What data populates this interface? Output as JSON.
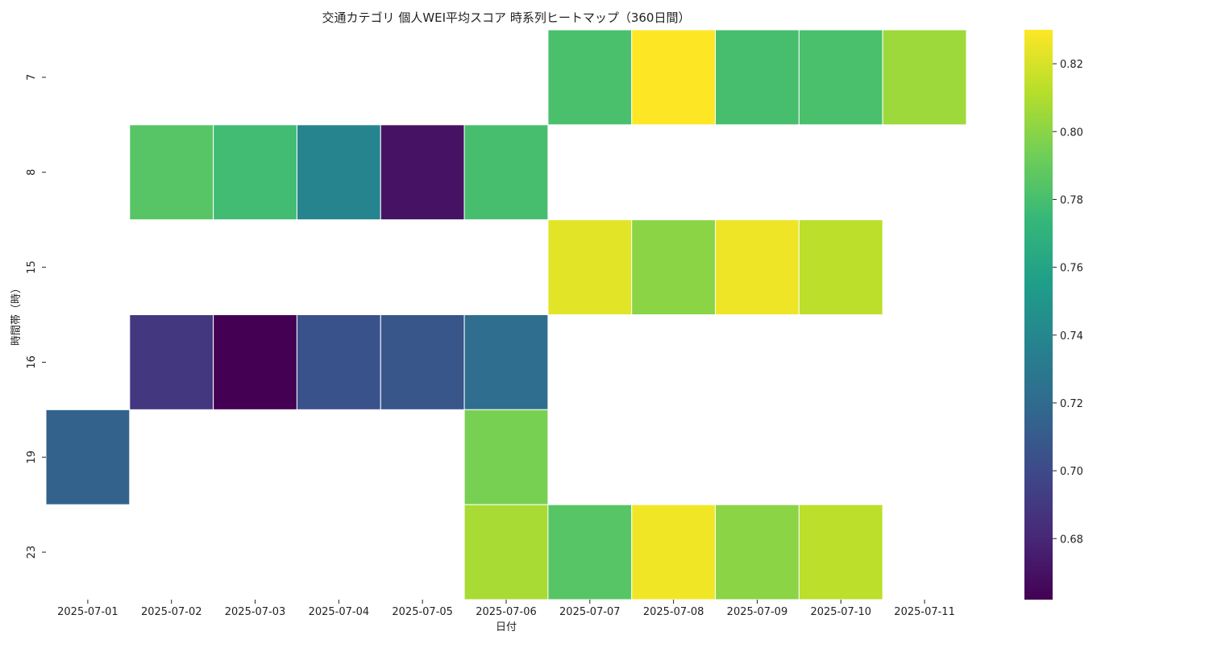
{
  "chart_data": {
    "type": "heatmap",
    "title": "交通カテゴリ 個人WEI平均スコア 時系列ヒートマップ（360日間）",
    "xlabel": "日付",
    "ylabel": "時間帯（時）",
    "x": [
      "2025-07-01",
      "2025-07-02",
      "2025-07-03",
      "2025-07-04",
      "2025-07-05",
      "2025-07-06",
      "2025-07-07",
      "2025-07-08",
      "2025-07-09",
      "2025-07-10",
      "2025-07-11"
    ],
    "y": [
      "7",
      "8",
      "15",
      "16",
      "19",
      "23"
    ],
    "values": [
      [
        null,
        null,
        null,
        null,
        null,
        null,
        0.781,
        0.83,
        0.78,
        0.781,
        0.805
      ],
      [
        null,
        0.785,
        0.778,
        0.738,
        0.67,
        0.78,
        null,
        null,
        null,
        null,
        null
      ],
      [
        null,
        null,
        null,
        null,
        null,
        null,
        0.823,
        0.8,
        0.826,
        0.813,
        null
      ],
      [
        null,
        0.69,
        0.662,
        0.705,
        0.707,
        0.722,
        null,
        null,
        null,
        null,
        null
      ],
      [
        0.715,
        null,
        null,
        null,
        null,
        0.795,
        null,
        null,
        null,
        null,
        null
      ],
      [
        null,
        null,
        null,
        null,
        null,
        0.808,
        0.785,
        0.827,
        0.8,
        0.813,
        null
      ]
    ],
    "colorbar": {
      "colormap": "viridis",
      "range": [
        0.662,
        0.83
      ],
      "ticks": [
        "0.68",
        "0.70",
        "0.72",
        "0.74",
        "0.76",
        "0.78",
        "0.80",
        "0.82"
      ]
    },
    "grid": false,
    "legend": "colorbar-right"
  }
}
